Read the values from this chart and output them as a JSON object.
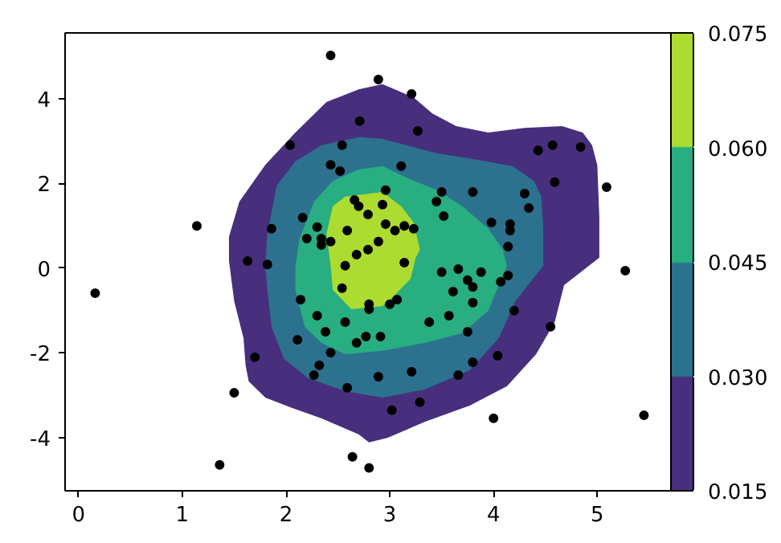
{
  "chart_data": {
    "type": "scatter",
    "clim": [
      0.015,
      0.075
    ],
    "cticks": [
      0.015,
      {
        "value": 0.03,
        "label": "0.030"
      },
      0.045,
      {
        "value": 0.06,
        "label": "0.060"
      },
      0.075
    ],
    "xlim": [
      -0.13,
      5.71
    ],
    "ylim": [
      -5.25,
      5.55
    ],
    "xticks": [
      0,
      1,
      2,
      3,
      4,
      5
    ],
    "yticks": [
      -4,
      -2,
      0,
      2,
      4
    ],
    "series": [
      {
        "type": "area",
        "marker": "none",
        "color": "#472f7d",
        "x": [
          1.45,
          1.45,
          1.55,
          1.8,
          2.09,
          2.39,
          2.7,
          2.93,
          3.23,
          3.41,
          3.64,
          3.95,
          4.3,
          4.66,
          4.86,
          4.95,
          5.0,
          5.02,
          5.02,
          4.68,
          4.59,
          4.41,
          4.13,
          3.77,
          3.34,
          2.98,
          2.8,
          2.7,
          2.34,
          2.04,
          1.8,
          1.64,
          1.61,
          1.59,
          1.5
        ],
        "values": [
          0.17,
          0.74,
          1.57,
          2.44,
          3.2,
          3.92,
          4.22,
          4.34,
          4.03,
          3.65,
          3.35,
          3.2,
          3.31,
          3.35,
          3.2,
          2.9,
          2.44,
          1.19,
          0.25,
          -0.4,
          -1.27,
          -2.03,
          -2.78,
          -3.24,
          -3.62,
          -4.0,
          -4.11,
          -3.92,
          -3.54,
          -3.28,
          -3.05,
          -2.67,
          -2.29,
          -1.65,
          -0.78
        ]
      },
      {
        "type": "area",
        "marker": "none",
        "color": "#2c728e",
        "x": [
          1.8,
          1.82,
          1.91,
          2.09,
          2.34,
          2.7,
          2.93,
          3.16,
          3.46,
          3.77,
          4.18,
          4.39,
          4.46,
          4.48,
          4.48,
          4.21,
          4.05,
          3.77,
          3.34,
          2.93,
          2.57,
          2.21,
          1.98,
          1.86,
          1.82
        ],
        "values": [
          0.06,
          0.81,
          1.95,
          2.52,
          2.9,
          3.09,
          3.05,
          2.9,
          2.71,
          2.59,
          2.41,
          2.06,
          1.69,
          0.93,
          0.06,
          -0.78,
          -1.65,
          -2.41,
          -2.86,
          -3.05,
          -2.9,
          -2.59,
          -2.14,
          -1.38,
          -0.51
        ]
      },
      {
        "type": "area",
        "marker": "none",
        "color": "#28ae80",
        "x": [
          2.09,
          2.13,
          2.27,
          2.45,
          2.7,
          2.93,
          3.16,
          3.46,
          3.7,
          3.95,
          4.09,
          4.13,
          4.05,
          3.95,
          3.7,
          3.34,
          2.93,
          2.57,
          2.34,
          2.18,
          2.09
        ],
        "values": [
          0.06,
          0.7,
          1.57,
          2.06,
          2.33,
          2.41,
          2.14,
          1.84,
          1.46,
          0.93,
          0.44,
          0.06,
          -0.4,
          -1.0,
          -1.53,
          -1.76,
          -1.95,
          -2.03,
          -1.76,
          -1.38,
          -0.51
        ]
      },
      {
        "type": "area",
        "marker": "none",
        "color": "#addc30",
        "x": [
          2.43,
          2.39,
          2.45,
          2.57,
          2.93,
          3.11,
          3.23,
          3.29,
          3.25,
          3.2,
          3.05,
          2.93,
          2.63,
          2.45
        ],
        "values": [
          0.06,
          0.81,
          1.46,
          1.69,
          1.8,
          1.46,
          1.08,
          0.44,
          0.25,
          -0.25,
          -0.63,
          -0.89,
          -0.97,
          -0.51
        ]
      },
      {
        "marker": "circle",
        "color": "#000000",
        "x": [
          2.43,
          2.89,
          3.21,
          2.71,
          2.04,
          2.54,
          3.27,
          2.43,
          2.52,
          3.11,
          4.43,
          4.57,
          4.84,
          4.59,
          5.09,
          2.66,
          2.7,
          2.79,
          2.96,
          2.93,
          3.5,
          3.8,
          4.3,
          3.45,
          4.34,
          3.52,
          2.16,
          1.14,
          1.86,
          2.3,
          2.59,
          2.2,
          2.34,
          2.43,
          2.34,
          2.89,
          2.68,
          2.79,
          3.98,
          4.16,
          4.16,
          2.96,
          3.14,
          3.23,
          3.05,
          4.14,
          3.14,
          1.63,
          1.82,
          0.16,
          2.57,
          2.54,
          2.14,
          2.8,
          2.8,
          2.3,
          2.57,
          2.38,
          2.77,
          2.68,
          2.11,
          2.43,
          1.7,
          2.32,
          2.27,
          2.89,
          2.59,
          1.5,
          1.36,
          2.64,
          2.8,
          3.5,
          3.66,
          3.88,
          4.14,
          4.07,
          3.75,
          3.8,
          3.61,
          3.8,
          3.0,
          3.07,
          4.2,
          3.57,
          3.38,
          4.55,
          3.75,
          2.91,
          4.04,
          3.8,
          3.21,
          3.66,
          3.29,
          3.02,
          4.0,
          5.27,
          5.45
        ],
        "values": [
          5.02,
          4.45,
          4.11,
          3.47,
          2.9,
          2.9,
          3.24,
          2.44,
          2.29,
          2.41,
          2.78,
          2.9,
          2.86,
          2.03,
          1.91,
          1.61,
          1.46,
          1.27,
          1.84,
          1.5,
          1.8,
          1.8,
          1.76,
          1.57,
          1.42,
          1.23,
          1.19,
          1.0,
          0.93,
          0.97,
          0.89,
          0.7,
          0.7,
          0.63,
          0.55,
          0.63,
          0.32,
          0.44,
          1.08,
          1.04,
          0.89,
          1.04,
          1.0,
          0.93,
          0.89,
          0.51,
          0.13,
          0.17,
          0.09,
          -0.59,
          0.06,
          -0.47,
          -0.74,
          -0.85,
          -0.97,
          -1.12,
          -1.27,
          -1.5,
          -1.61,
          -1.76,
          -1.69,
          -1.99,
          -2.1,
          -2.29,
          -2.52,
          -2.56,
          -2.82,
          -2.94,
          -4.64,
          -4.45,
          -4.71,
          -0.09,
          -0.02,
          -0.09,
          -0.17,
          -0.32,
          -0.28,
          -0.44,
          -0.55,
          -0.81,
          -0.85,
          -0.74,
          -1.0,
          -1.12,
          -1.27,
          -1.38,
          -1.5,
          -1.61,
          -2.06,
          -2.22,
          -2.44,
          -2.52,
          -3.16,
          -3.35,
          -3.54,
          -0.06,
          -3.47
        ]
      }
    ]
  }
}
